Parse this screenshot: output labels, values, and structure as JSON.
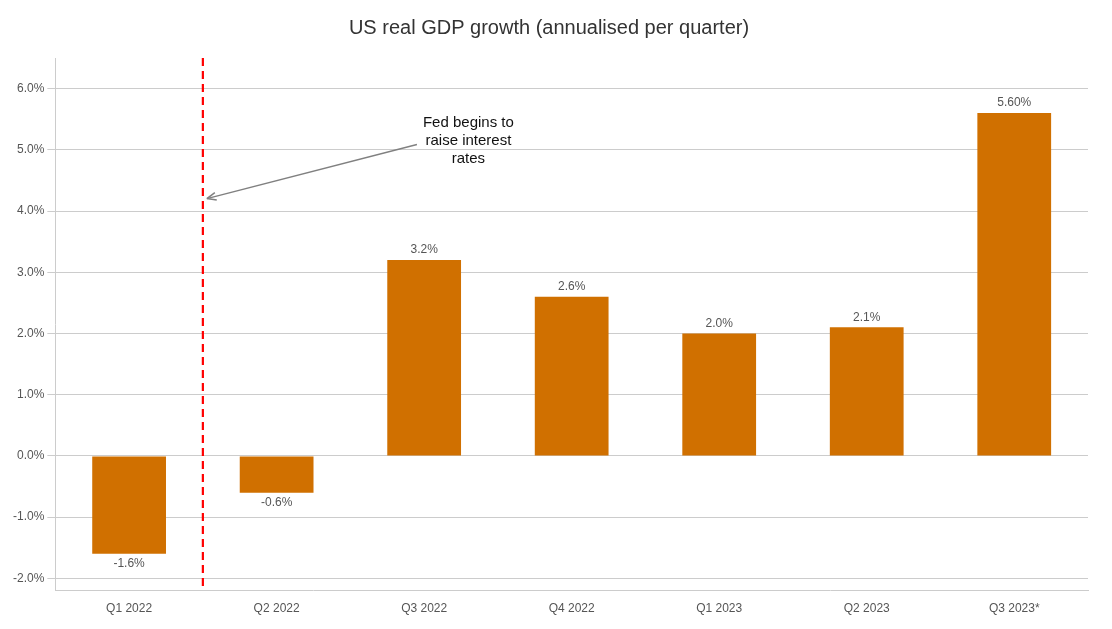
{
  "chart_data": {
    "type": "bar",
    "title": "US real GDP growth (annualised per quarter)",
    "categories": [
      "Q1 2022",
      "Q2 2022",
      "Q3 2022",
      "Q4 2022",
      "Q1 2023",
      "Q2 2023",
      "Q3 2023*"
    ],
    "values": [
      -1.6,
      -0.6,
      3.2,
      2.6,
      2.0,
      2.1,
      5.6
    ],
    "value_labels": [
      "-1.6%",
      "-0.6%",
      "3.2%",
      "2.6%",
      "2.0%",
      "2.1%",
      "5.60%"
    ],
    "data_labels": true,
    "color": "#D07000",
    "ylim": [
      -2.2,
      6.5
    ],
    "yticks": [
      {
        "value": -2.0,
        "label": "-2.0%"
      },
      {
        "value": -1.0,
        "label": "-1.0%"
      },
      {
        "value": 0.0,
        "label": "0.0%"
      },
      {
        "value": 1.0,
        "label": "1.0%"
      },
      {
        "value": 2.0,
        "label": "2.0%"
      },
      {
        "value": 3.0,
        "label": "3.0%"
      },
      {
        "value": 4.0,
        "label": "4.0%"
      },
      {
        "value": 5.0,
        "label": "5.0%"
      },
      {
        "value": 6.0,
        "label": "6.0%"
      }
    ],
    "grid": true,
    "annotation": "Fed begins to\nraise interest\nrates"
  }
}
